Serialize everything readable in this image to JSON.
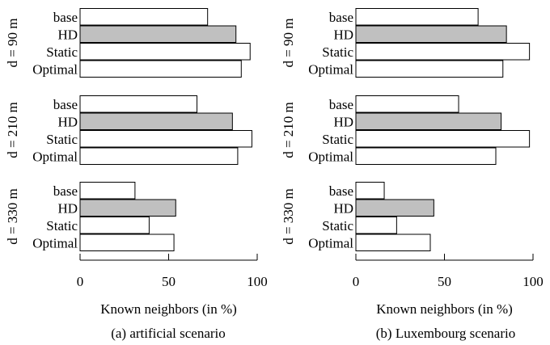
{
  "colors": {
    "bar_default": "#ffffff",
    "bar_highlight": "#c0c0c0",
    "stroke": "#000000"
  },
  "chart_data": [
    {
      "type": "bar",
      "orientation": "horizontal",
      "caption": "(a) artificial scenario",
      "xlabel": "Known neighbors (in %)",
      "xlim": [
        0,
        100
      ],
      "xticks": [
        0,
        50,
        100
      ],
      "categories": [
        "base",
        "HD",
        "Static",
        "Optimal"
      ],
      "highlight_category": "HD",
      "groups": [
        {
          "label": "d = 90 m",
          "values": [
            72,
            88,
            96,
            91
          ]
        },
        {
          "label": "d = 210 m",
          "values": [
            66,
            86,
            97,
            89
          ]
        },
        {
          "label": "d = 330 m",
          "values": [
            31,
            54,
            39,
            53
          ]
        }
      ]
    },
    {
      "type": "bar",
      "orientation": "horizontal",
      "caption": "(b) Luxembourg scenario",
      "xlabel": "Known neighbors (in %)",
      "xlim": [
        0,
        100
      ],
      "xticks": [
        0,
        50,
        100
      ],
      "categories": [
        "base",
        "HD",
        "Static",
        "Optimal"
      ],
      "highlight_category": "HD",
      "groups": [
        {
          "label": "d = 90 m",
          "values": [
            69,
            85,
            98,
            83
          ]
        },
        {
          "label": "d = 210 m",
          "values": [
            58,
            82,
            98,
            79
          ]
        },
        {
          "label": "d = 330 m",
          "values": [
            16,
            44,
            23,
            42
          ]
        }
      ]
    }
  ]
}
